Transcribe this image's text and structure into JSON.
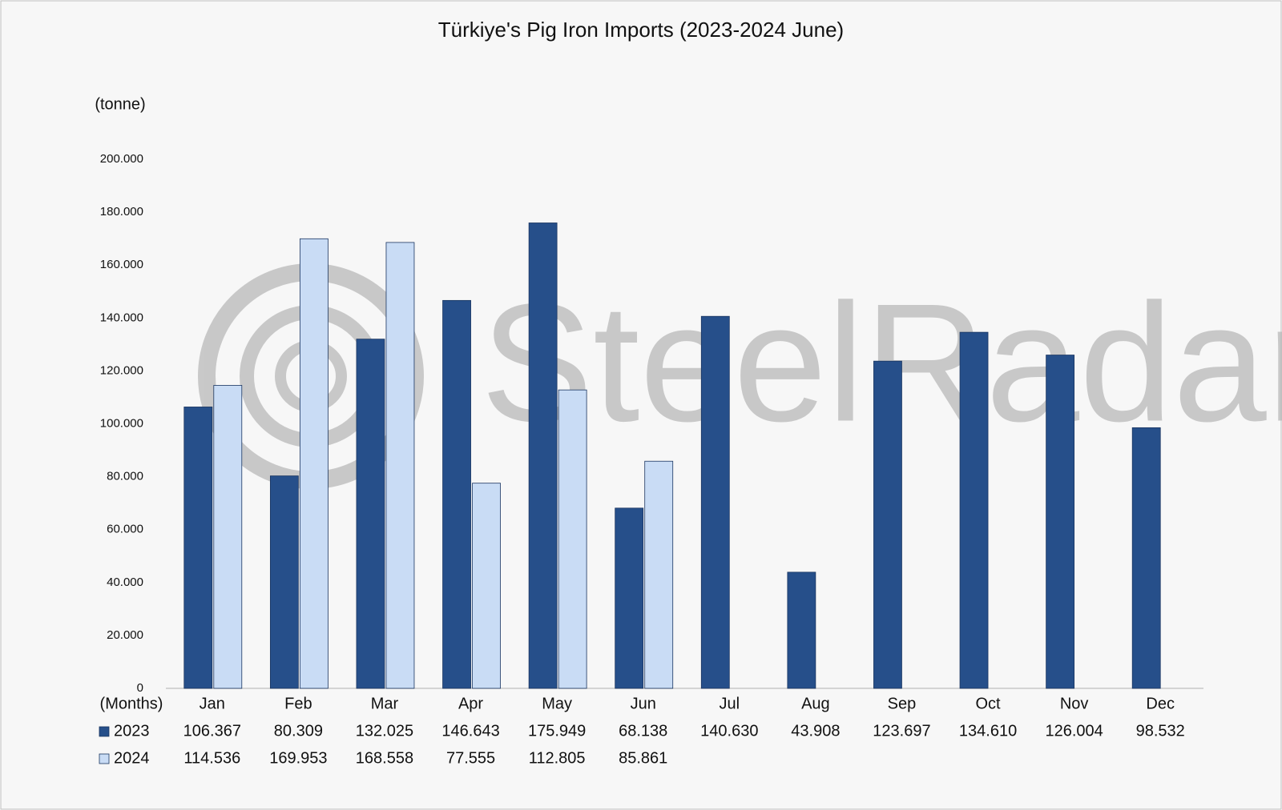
{
  "chart_data": {
    "type": "bar",
    "title": "Türkiye's Pig Iron Imports (2023-2024 June)",
    "y_axis_label": "(tonne)",
    "x_axis_label": "(Months)",
    "watermark": "SteelRadar",
    "categories": [
      "Jan",
      "Feb",
      "Mar",
      "Apr",
      "May",
      "Jun",
      "Jul",
      "Aug",
      "Sep",
      "Oct",
      "Nov",
      "Dec"
    ],
    "series": [
      {
        "name": "2023",
        "color": "#264f8a",
        "values": [
          106367,
          80309,
          132025,
          146643,
          175949,
          68138,
          140630,
          43908,
          123697,
          134610,
          126004,
          98532
        ],
        "value_labels": [
          "106.367",
          "80.309",
          "132.025",
          "146.643",
          "175.949",
          "68.138",
          "140.630",
          "43.908",
          "123.697",
          "134.610",
          "126.004",
          "98.532"
        ]
      },
      {
        "name": "2024",
        "color": "#c9dcf5",
        "values": [
          114536,
          169953,
          168558,
          77555,
          112805,
          85861,
          null,
          null,
          null,
          null,
          null,
          null
        ],
        "value_labels": [
          "114.536",
          "169.953",
          "168.558",
          "77.555",
          "112.805",
          "85.861",
          null,
          null,
          null,
          null,
          null,
          null
        ]
      }
    ],
    "ylim": [
      0,
      200000
    ],
    "yticks": [
      0,
      {
        "value": 20000,
        "label": "20.000"
      },
      {
        "value": 40000,
        "label": "40.000"
      },
      {
        "value": 60000,
        "label": "60.000"
      },
      {
        "value": 80000,
        "label": "80.000"
      },
      {
        "value": 100000,
        "label": "100.000"
      },
      {
        "value": 120000,
        "label": "120.000"
      },
      {
        "value": 140000,
        "label": "140.000"
      },
      {
        "value": 160000,
        "label": "160.000"
      },
      {
        "value": 180000,
        "label": "180.000"
      },
      {
        "value": 200000,
        "label": "200.000"
      }
    ],
    "grid": false
  }
}
